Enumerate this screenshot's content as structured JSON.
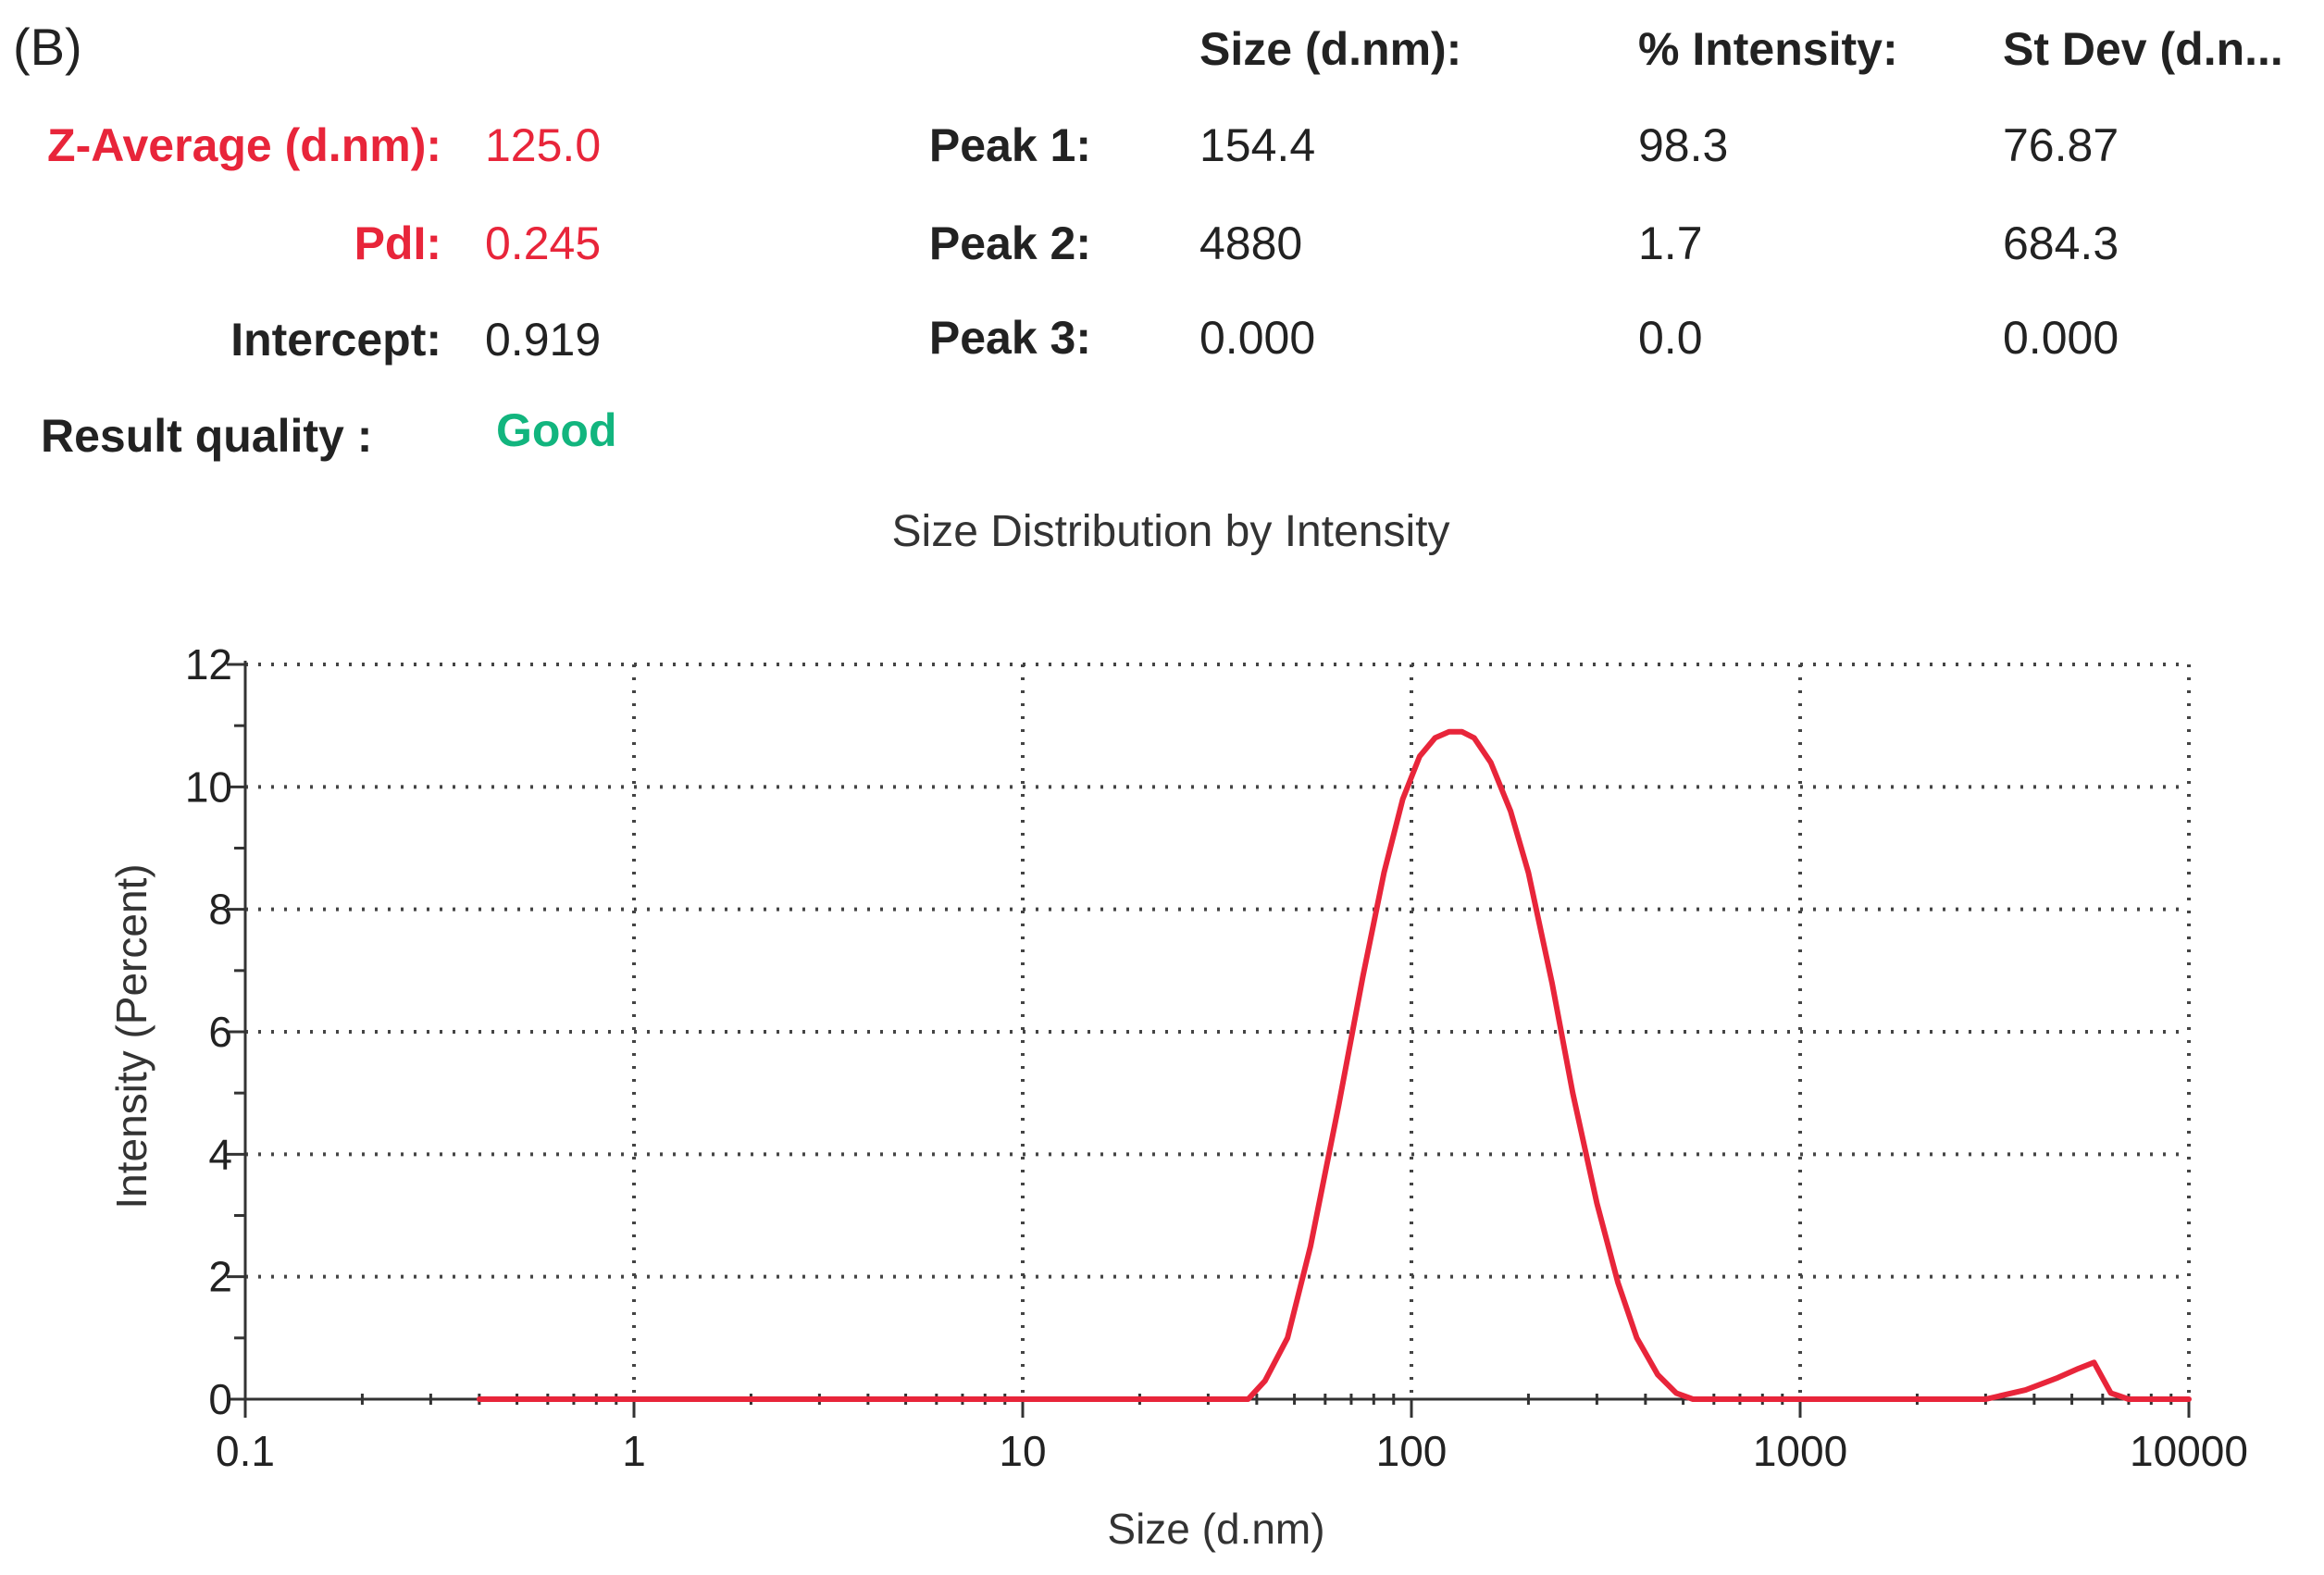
{
  "panel_label": "(B)",
  "summary": {
    "z_average_label": "Z-Average (d.nm):",
    "z_average_value": "125.0",
    "pdi_label": "PdI:",
    "pdi_value": "0.245",
    "intercept_label": "Intercept:",
    "intercept_value": "0.919",
    "quality_label": "Result quality :",
    "quality_value": "Good"
  },
  "peaks": {
    "headers": [
      "Size (d.nm):",
      "% Intensity:",
      "St Dev (d.n..."
    ],
    "rows": [
      {
        "label": "Peak 1:",
        "size": "154.4",
        "intensity": "98.3",
        "stdev": "76.87"
      },
      {
        "label": "Peak 2:",
        "size": "4880",
        "intensity": "1.7",
        "stdev": "684.3"
      },
      {
        "label": "Peak 3:",
        "size": "0.000",
        "intensity": "0.0",
        "stdev": "0.000"
      }
    ]
  },
  "colors": {
    "accent_red": "#e8253a",
    "good_green": "#12b57e",
    "series_line": "#e8253a"
  },
  "chart_data": {
    "type": "line",
    "title": "Size Distribution by Intensity",
    "xlabel": "Size (d.nm)",
    "ylabel": "Intensity (Percent)",
    "xscale": "log",
    "xlim": [
      0.1,
      10000
    ],
    "ylim": [
      0,
      12
    ],
    "x_ticks": [
      "0.1",
      "1",
      "10",
      "100",
      "1000",
      "10000"
    ],
    "y_ticks": [
      "0",
      "2",
      "4",
      "6",
      "8",
      "10",
      "12"
    ],
    "grid": true,
    "series": [
      {
        "x": [
          0.4,
          1,
          5,
          10,
          20,
          38,
          42,
          48,
          55,
          65,
          75,
          85,
          95,
          105,
          115,
          125,
          135,
          145,
          160,
          180,
          200,
          230,
          260,
          300,
          340,
          380,
          430,
          480,
          530,
          600,
          1000,
          2000,
          3000,
          3800,
          4600,
          5200,
          5700,
          6300,
          7000,
          8500,
          10000
        ],
        "y": [
          0,
          0,
          0,
          0,
          0,
          0,
          0.3,
          1.0,
          2.5,
          4.8,
          6.9,
          8.6,
          9.8,
          10.5,
          10.8,
          10.9,
          10.9,
          10.8,
          10.4,
          9.6,
          8.6,
          6.8,
          5.0,
          3.2,
          1.9,
          1.0,
          0.4,
          0.1,
          0,
          0,
          0,
          0,
          0,
          0.15,
          0.35,
          0.5,
          0.6,
          0.1,
          0,
          0,
          0
        ]
      }
    ]
  }
}
